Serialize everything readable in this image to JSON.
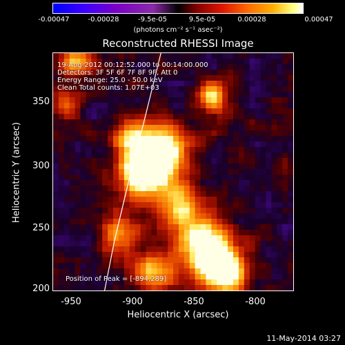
{
  "colorbar": {
    "ticks": [
      "-0.00047",
      "-0.00028",
      "-9.5e-05",
      "9.5e-05",
      "0.00028",
      "0.00047"
    ],
    "units": "(photons cm⁻² s⁻¹ asec⁻²)"
  },
  "chart_data": {
    "type": "heatmap",
    "title": "Reconstructed RHESSI Image",
    "xlabel": "Heliocentric X (arcsec)",
    "ylabel": "Heliocentric Y (arcsec)",
    "xlim": [
      -968,
      -772
    ],
    "ylim": [
      200,
      392
    ],
    "x_ticks": [
      "-950",
      "-900",
      "-850",
      "-800"
    ],
    "y_ticks": [
      "350",
      "300",
      "250",
      "200"
    ],
    "color_range": [
      -0.00047,
      0.00047
    ],
    "peak": [
      -894,
      289
    ],
    "annotations": [
      "19-Aug-2012 00:12:52.000 to 00:14:00.000",
      "Detectors: 3F 5F 6F 7F 8F 9F, Att 0",
      "Energy Range: 25.0 - 50.0 keV",
      "Clean     Total counts: 1.07E+03"
    ],
    "peak_label": "Position of Peak = [-894,289]",
    "limb_curve": [
      [
        -926,
        200
      ],
      [
        -918,
        240
      ],
      [
        -906,
        290
      ],
      [
        -893,
        340
      ],
      [
        -880,
        392
      ]
    ]
  },
  "footer": {
    "date": "11-May-2014 03:27"
  }
}
